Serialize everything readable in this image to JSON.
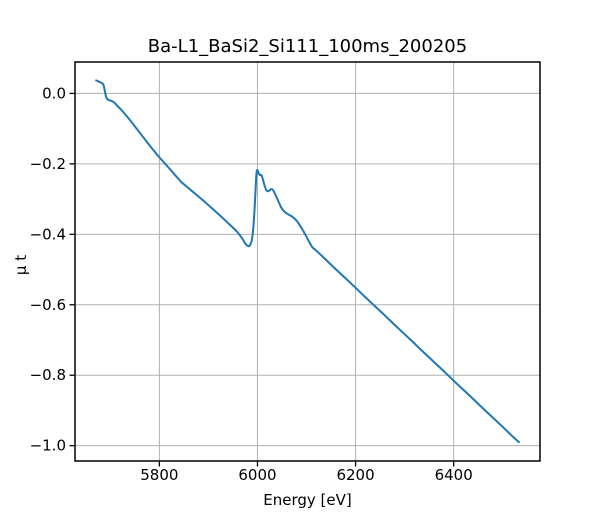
{
  "figure": {
    "background": "#ffffff"
  },
  "chart_data": {
    "type": "line",
    "title": "Ba-L1_BaSi2_Si111_100ms_200205",
    "xlabel": "Energy [eV]",
    "ylabel": "μ t",
    "xlim": [
      5628,
      6576
    ],
    "ylim": [
      -1.0435,
      0.0892
    ],
    "x_ticks": [
      5800,
      6000,
      6200,
      6400
    ],
    "x_tick_labels": [
      "5800",
      "6000",
      "6200",
      "6400"
    ],
    "y_ticks": [
      0.0,
      -0.2,
      -0.4,
      -0.6,
      -0.8,
      -1.0
    ],
    "y_tick_labels": [
      "0.0",
      "−0.2",
      "−0.4",
      "−0.6",
      "−0.8",
      "−1.0"
    ],
    "grid": true,
    "legend": null,
    "colors": {
      "line": "#1f77b4",
      "grid": "#b0b0b0",
      "spine": "#000000",
      "text": "#000000",
      "background": "#ffffff"
    },
    "series": [
      {
        "name": "μ t",
        "points": [
          [
            5671,
            0.037
          ],
          [
            5673,
            0.036
          ],
          [
            5676,
            0.034
          ],
          [
            5679,
            0.032
          ],
          [
            5682,
            0.03
          ],
          [
            5685,
            0.027
          ],
          [
            5687,
            0.02
          ],
          [
            5689,
            0.006
          ],
          [
            5691,
            -0.008
          ],
          [
            5693,
            -0.015
          ],
          [
            5696,
            -0.018
          ],
          [
            5699,
            -0.02
          ],
          [
            5702,
            -0.021
          ],
          [
            5705,
            -0.023
          ],
          [
            5708,
            -0.026
          ],
          [
            5711,
            -0.03
          ],
          [
            5714,
            -0.035
          ],
          [
            5722,
            -0.046
          ],
          [
            5732,
            -0.062
          ],
          [
            5742,
            -0.079
          ],
          [
            5752,
            -0.097
          ],
          [
            5762,
            -0.115
          ],
          [
            5772,
            -0.133
          ],
          [
            5782,
            -0.151
          ],
          [
            5792,
            -0.168
          ],
          [
            5801,
            -0.183
          ],
          [
            5812,
            -0.2
          ],
          [
            5823,
            -0.217
          ],
          [
            5834,
            -0.235
          ],
          [
            5845,
            -0.252
          ],
          [
            5856,
            -0.265
          ],
          [
            5868,
            -0.279
          ],
          [
            5880,
            -0.293
          ],
          [
            5892,
            -0.307
          ],
          [
            5904,
            -0.322
          ],
          [
            5916,
            -0.337
          ],
          [
            5928,
            -0.352
          ],
          [
            5940,
            -0.368
          ],
          [
            5950,
            -0.381
          ],
          [
            5958,
            -0.392
          ],
          [
            5964,
            -0.402
          ],
          [
            5970,
            -0.414
          ],
          [
            5974,
            -0.424
          ],
          [
            5978,
            -0.431
          ],
          [
            5982,
            -0.434
          ],
          [
            5985,
            -0.431
          ],
          [
            5988,
            -0.42
          ],
          [
            5990,
            -0.403
          ],
          [
            5992,
            -0.373
          ],
          [
            5994,
            -0.331
          ],
          [
            5996,
            -0.277
          ],
          [
            5997.5,
            -0.235
          ],
          [
            5998.5,
            -0.22
          ],
          [
            5999.5,
            -0.217
          ],
          [
            6001,
            -0.221
          ],
          [
            6003,
            -0.228
          ],
          [
            6005,
            -0.232
          ],
          [
            6007,
            -0.231
          ],
          [
            6009,
            -0.234
          ],
          [
            6012,
            -0.249
          ],
          [
            6015,
            -0.264
          ],
          [
            6018,
            -0.275
          ],
          [
            6021,
            -0.278
          ],
          [
            6024,
            -0.276
          ],
          [
            6027,
            -0.272
          ],
          [
            6030,
            -0.272
          ],
          [
            6033,
            -0.277
          ],
          [
            6036,
            -0.286
          ],
          [
            6040,
            -0.298
          ],
          [
            6044,
            -0.311
          ],
          [
            6048,
            -0.323
          ],
          [
            6052,
            -0.331
          ],
          [
            6056,
            -0.337
          ],
          [
            6060,
            -0.341
          ],
          [
            6065,
            -0.345
          ],
          [
            6070,
            -0.349
          ],
          [
            6076,
            -0.356
          ],
          [
            6082,
            -0.365
          ],
          [
            6088,
            -0.378
          ],
          [
            6094,
            -0.392
          ],
          [
            6100,
            -0.407
          ],
          [
            6106,
            -0.423
          ],
          [
            6112,
            -0.437
          ],
          [
            6118,
            -0.444
          ],
          [
            6138,
            -0.47
          ],
          [
            6158,
            -0.497
          ],
          [
            6178,
            -0.523
          ],
          [
            6198,
            -0.549
          ],
          [
            6218,
            -0.576
          ],
          [
            6238,
            -0.602
          ],
          [
            6258,
            -0.628
          ],
          [
            6278,
            -0.655
          ],
          [
            6298,
            -0.681
          ],
          [
            6318,
            -0.707
          ],
          [
            6338,
            -0.734
          ],
          [
            6358,
            -0.76
          ],
          [
            6378,
            -0.786
          ],
          [
            6398,
            -0.813
          ],
          [
            6418,
            -0.839
          ],
          [
            6438,
            -0.865
          ],
          [
            6458,
            -0.892
          ],
          [
            6478,
            -0.918
          ],
          [
            6498,
            -0.944
          ],
          [
            6518,
            -0.971
          ],
          [
            6533,
            -0.99
          ]
        ]
      }
    ]
  }
}
